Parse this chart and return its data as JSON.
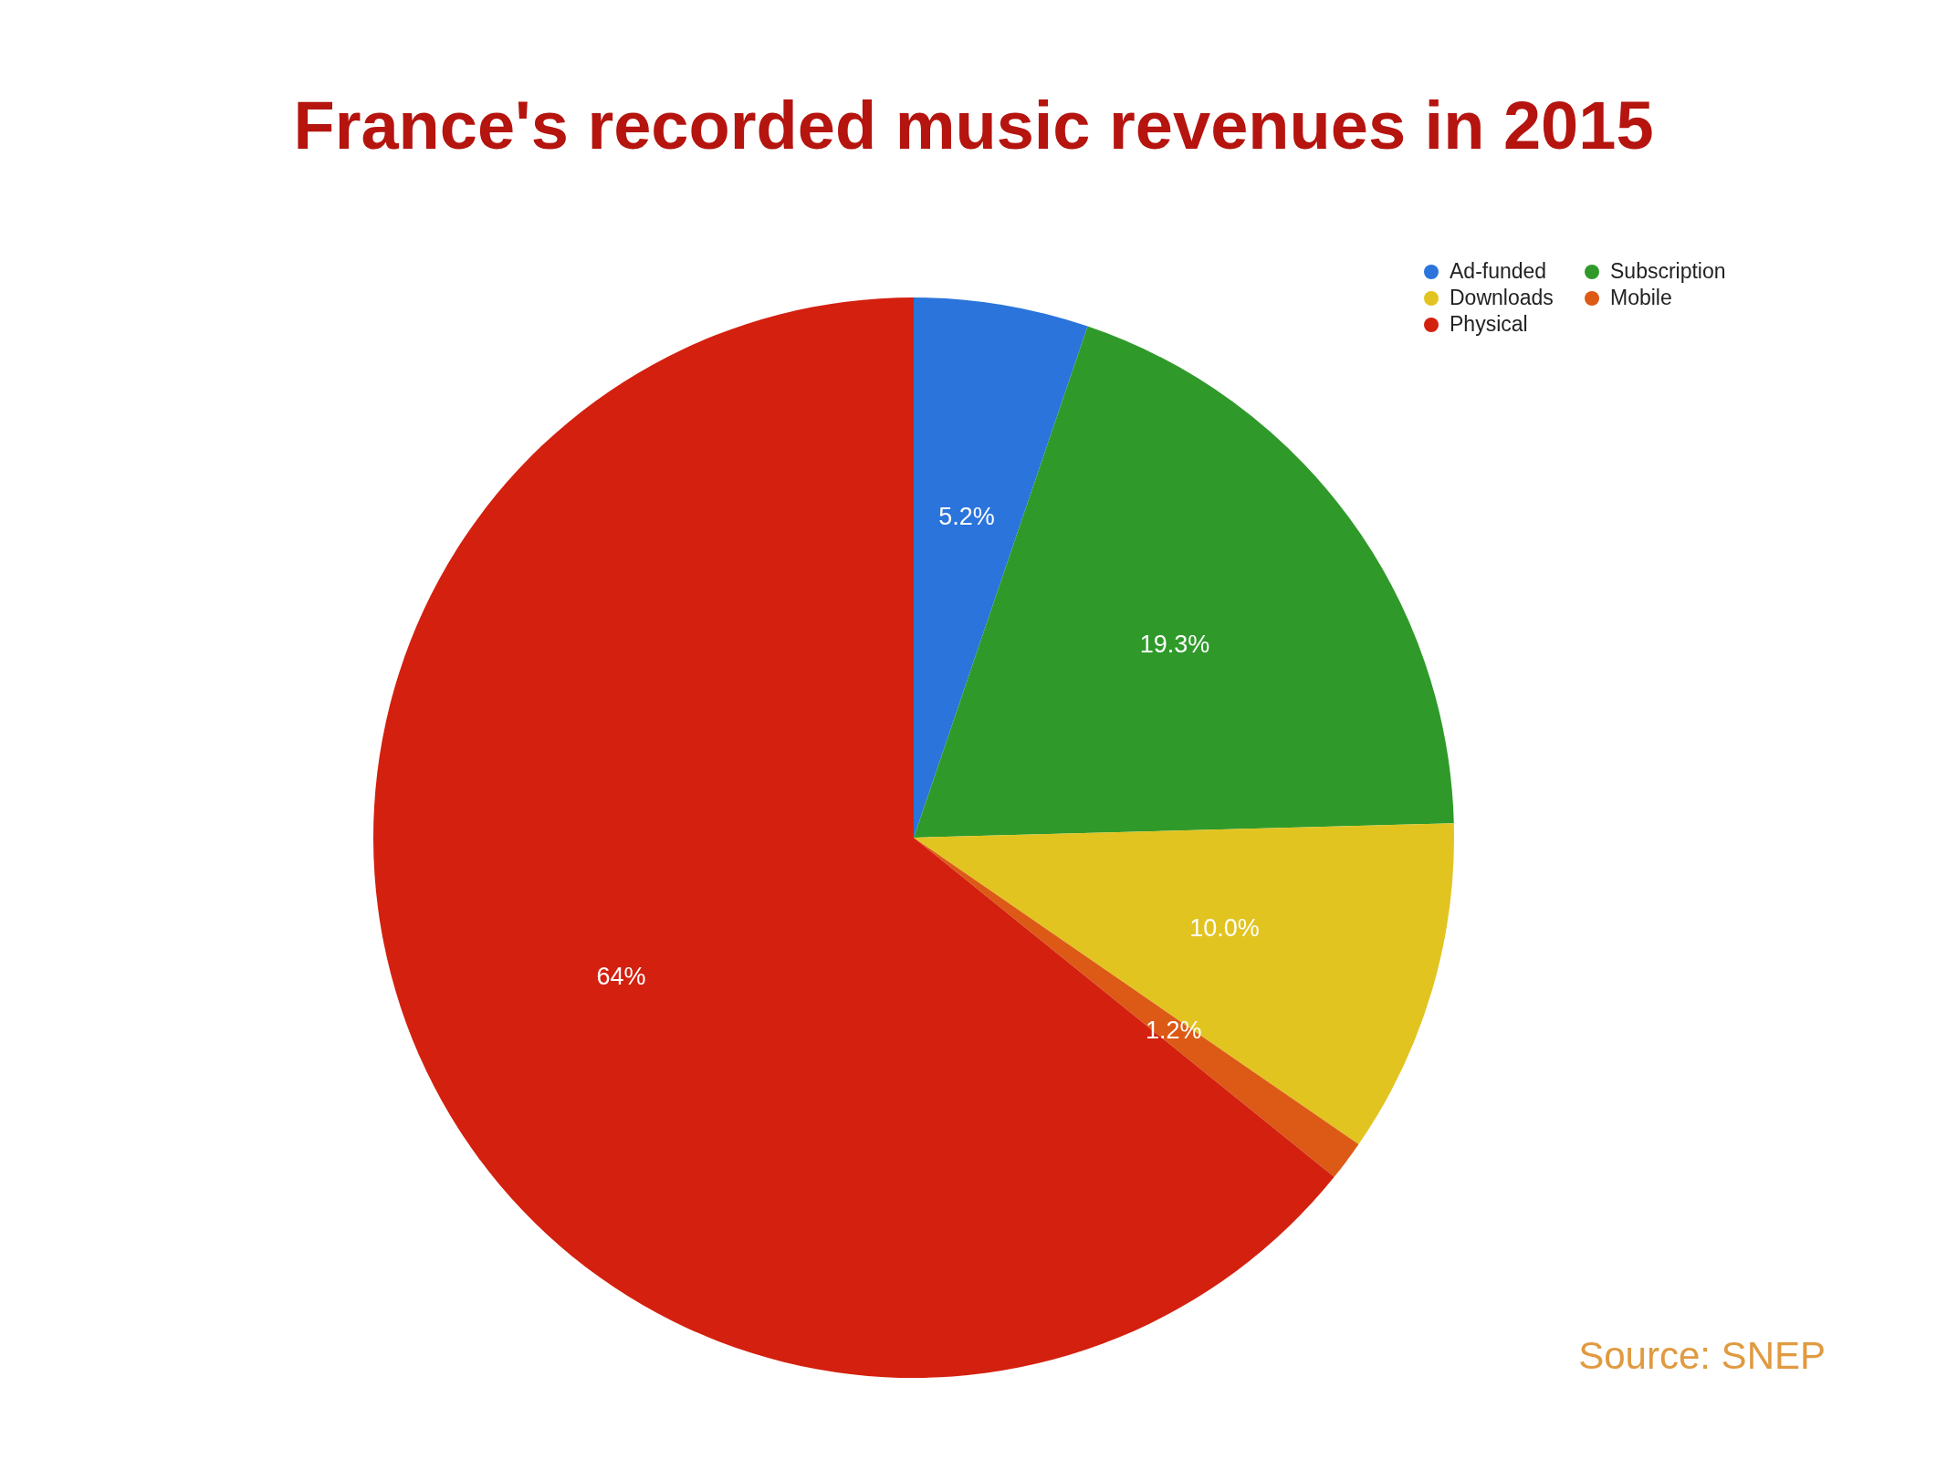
{
  "chart_data": {
    "type": "pie",
    "title": "France's recorded music revenues in 2015",
    "categories": [
      "Ad-funded",
      "Subscription",
      "Downloads",
      "Mobile",
      "Physical"
    ],
    "values": [
      5.2,
      19.3,
      10.0,
      1.2,
      64
    ],
    "colors": [
      "#2a74dc",
      "#2f9a2a",
      "#e2c421",
      "#dc5a16",
      "#d4200f"
    ],
    "value_labels": [
      "5.2%",
      "19.3%",
      "10.0%",
      "1.2%",
      "64%"
    ],
    "legend": "top right",
    "annotations": [
      "Source: SNEP"
    ]
  }
}
